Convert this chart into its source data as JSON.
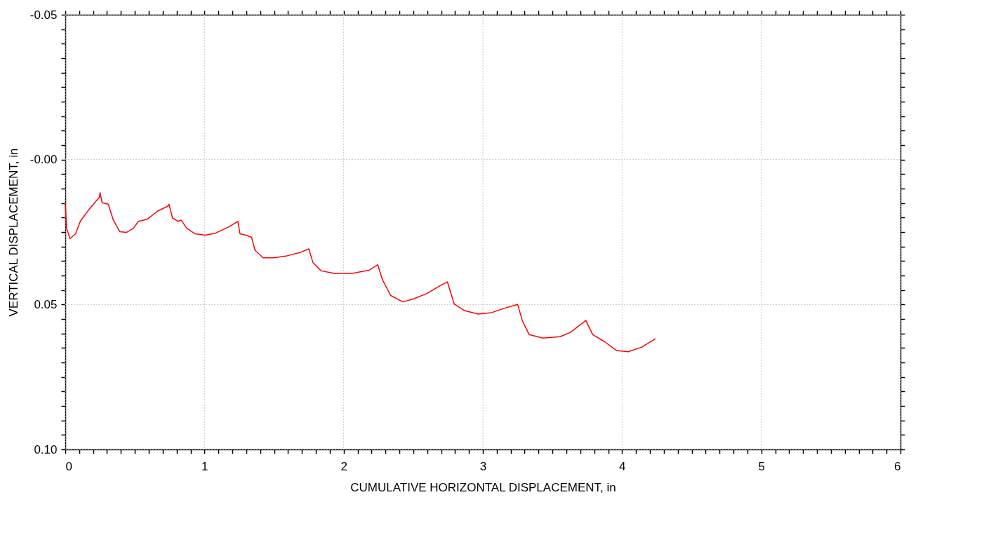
{
  "chart_data": {
    "type": "line",
    "xlabel": "CUMULATIVE HORIZONTAL DISPLACEMENT, in",
    "ylabel": "VERTICAL DISPLACEMENT, in",
    "xlim": [
      0,
      6
    ],
    "ylim": [
      0.1,
      -0.05
    ],
    "xticks": [
      0,
      {
        "value": 0.1,
        "label": null
      },
      {
        "value": 0.2,
        "label": null
      },
      {
        "value": 0.3,
        "label": null
      },
      {
        "value": 0.4,
        "label": null
      },
      {
        "value": 0.5,
        "label": null
      },
      {
        "value": 0.6,
        "label": null
      },
      {
        "value": 0.7,
        "label": null
      },
      {
        "value": 0.8,
        "label": null
      },
      {
        "value": 0.9,
        "label": null
      },
      1,
      {
        "value": 1.1,
        "label": null
      },
      {
        "value": 1.2,
        "label": null
      },
      {
        "value": 1.3,
        "label": null
      },
      {
        "value": 1.4,
        "label": null
      },
      {
        "value": 1.5,
        "label": null
      },
      {
        "value": 1.6,
        "label": null
      },
      {
        "value": 1.7,
        "label": null
      },
      {
        "value": 1.8,
        "label": null
      },
      {
        "value": 1.9,
        "label": null
      },
      2,
      {
        "value": 2.1,
        "label": null
      },
      {
        "value": 2.2,
        "label": null
      },
      {
        "value": 2.3,
        "label": null
      },
      {
        "value": 2.4,
        "label": null
      },
      {
        "value": 2.5,
        "label": null
      },
      {
        "value": 2.6,
        "label": null
      },
      {
        "value": 2.7,
        "label": null
      },
      {
        "value": 2.8,
        "label": null
      },
      {
        "value": 2.9,
        "label": null
      },
      3,
      {
        "value": 3.1,
        "label": null
      },
      {
        "value": 3.2,
        "label": null
      },
      {
        "value": 3.3,
        "label": null
      },
      {
        "value": 3.4,
        "label": null
      },
      {
        "value": 3.5,
        "label": null
      },
      {
        "value": 3.6,
        "label": null
      },
      {
        "value": 3.7,
        "label": null
      },
      {
        "value": 3.8,
        "label": null
      },
      {
        "value": 3.9,
        "label": null
      },
      4,
      {
        "value": 4.1,
        "label": null
      },
      {
        "value": 4.2,
        "label": null
      },
      {
        "value": 4.3,
        "label": null
      },
      {
        "value": 4.4,
        "label": null
      },
      {
        "value": 4.5,
        "label": null
      },
      {
        "value": 4.6,
        "label": null
      },
      {
        "value": 4.7,
        "label": null
      },
      {
        "value": 4.8,
        "label": null
      },
      {
        "value": 4.9,
        "label": null
      },
      5,
      {
        "value": 5.1,
        "label": null
      },
      {
        "value": 5.2,
        "label": null
      },
      {
        "value": 5.3,
        "label": null
      },
      {
        "value": 5.4,
        "label": null
      },
      {
        "value": 5.5,
        "label": null
      },
      {
        "value": 5.6,
        "label": null
      },
      {
        "value": 5.7,
        "label": null
      },
      {
        "value": 5.8,
        "label": null
      },
      {
        "value": 5.9,
        "label": null
      },
      6
    ],
    "yticks": [
      -0.05,
      {
        "value": -0.045,
        "label": null
      },
      {
        "value": -0.04,
        "label": null
      },
      {
        "value": -0.035,
        "label": null
      },
      {
        "value": -0.03,
        "label": null
      },
      {
        "value": -0.025,
        "label": null
      },
      {
        "value": -0.02,
        "label": null
      },
      {
        "value": -0.015,
        "label": null
      },
      {
        "value": -0.01,
        "label": null
      },
      {
        "value": -0.005,
        "label": null
      },
      {
        "value": 0,
        "label": "-0.00"
      },
      {
        "value": 0.005,
        "label": null
      },
      {
        "value": 0.01,
        "label": null
      },
      {
        "value": 0.015,
        "label": null
      },
      {
        "value": 0.02,
        "label": null
      },
      {
        "value": 0.025,
        "label": null
      },
      {
        "value": 0.03,
        "label": null
      },
      {
        "value": 0.035,
        "label": null
      },
      {
        "value": 0.04,
        "label": null
      },
      {
        "value": 0.045,
        "label": null
      },
      0.05,
      {
        "value": 0.055,
        "label": null
      },
      {
        "value": 0.06,
        "label": null
      },
      {
        "value": 0.065,
        "label": null
      },
      {
        "value": 0.07,
        "label": null
      },
      {
        "value": 0.075,
        "label": null
      },
      {
        "value": 0.08,
        "label": null
      },
      {
        "value": 0.085,
        "label": null
      },
      {
        "value": 0.09,
        "label": null
      },
      {
        "value": 0.095,
        "label": null
      },
      {
        "value": 0.1,
        "label": "0.10"
      }
    ],
    "grid": true,
    "legend": false,
    "series": [
      {
        "color": "#ff0000",
        "x": [
          0,
          0.01,
          0.034,
          0.074,
          0.108,
          0.172,
          0.245,
          0.25,
          0.265,
          0.309,
          0.343,
          0.392,
          0.441,
          0.49,
          0.525,
          0.588,
          0.662,
          0.735,
          0.745,
          0.77,
          0.809,
          0.833,
          0.873,
          0.931,
          1.005,
          1.078,
          1.176,
          1.24,
          1.255,
          1.299,
          1.338,
          1.363,
          1.422,
          1.495,
          1.593,
          1.691,
          1.75,
          1.779,
          1.838,
          1.936,
          2.059,
          2.181,
          2.245,
          2.279,
          2.338,
          2.426,
          2.5,
          2.598,
          2.696,
          2.745,
          2.794,
          2.868,
          2.966,
          3.064,
          3.147,
          3.25,
          3.284,
          3.333,
          3.431,
          3.554,
          3.627,
          3.74,
          3.789,
          3.873,
          3.961,
          4.044,
          4.142,
          4.24
        ],
        "values": [
          0.0154,
          0.0237,
          0.0273,
          0.0256,
          0.0213,
          0.0171,
          0.013,
          0.0114,
          0.0149,
          0.0154,
          0.0206,
          0.0249,
          0.0251,
          0.0237,
          0.0213,
          0.0206,
          0.0178,
          0.0161,
          0.0154,
          0.0201,
          0.0213,
          0.0209,
          0.0237,
          0.0256,
          0.0261,
          0.0254,
          0.0232,
          0.0213,
          0.0256,
          0.0261,
          0.0268,
          0.0313,
          0.0339,
          0.0339,
          0.0332,
          0.032,
          0.0308,
          0.0355,
          0.0384,
          0.0393,
          0.0393,
          0.0382,
          0.0363,
          0.0415,
          0.0469,
          0.0491,
          0.0481,
          0.0462,
          0.0434,
          0.0422,
          0.0498,
          0.0521,
          0.0533,
          0.0528,
          0.0514,
          0.05,
          0.0557,
          0.0604,
          0.0616,
          0.0611,
          0.0597,
          0.0555,
          0.0604,
          0.0628,
          0.0659,
          0.0663,
          0.0647,
          0.0618
        ]
      }
    ]
  }
}
